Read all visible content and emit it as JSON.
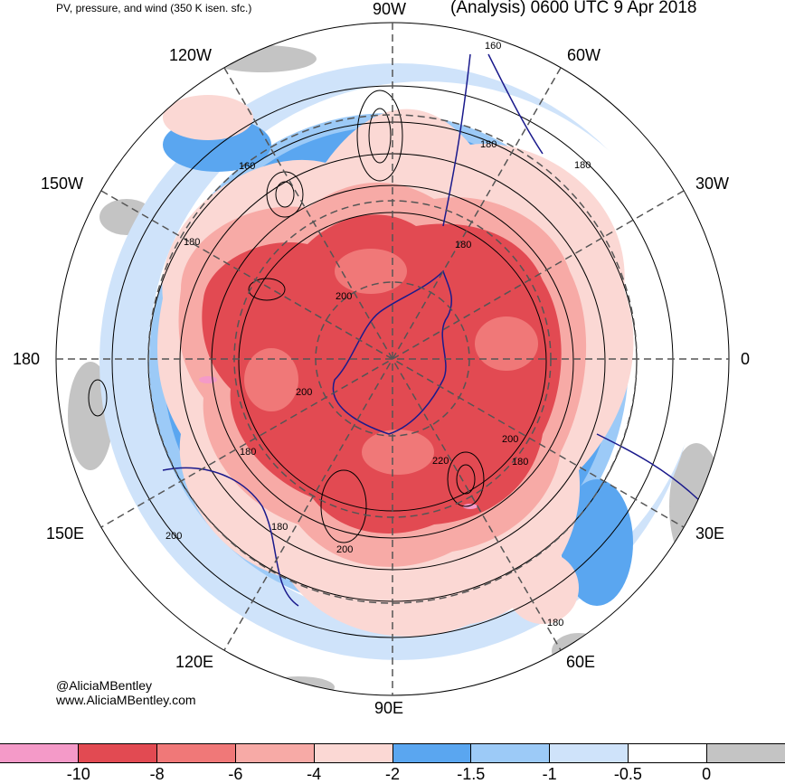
{
  "header": {
    "left_title": "PV, pressure, and wind (350 K isen. sfc.)",
    "right_title": "(Analysis) 0600 UTC 9 Apr 2018"
  },
  "longitude_labels": {
    "lon_90w": "90W",
    "lon_120w": "120W",
    "lon_60w": "60W",
    "lon_150w": "150W",
    "lon_30w": "30W",
    "lon_180": "180",
    "lon_0": "0",
    "lon_150e": "150E",
    "lon_30e": "30E",
    "lon_120e": "120E",
    "lon_60e": "60E",
    "lon_90e": "90E"
  },
  "contour_labels": [
    "160",
    "160",
    "180",
    "180",
    "180",
    "180",
    "200",
    "200",
    "180",
    "220",
    "200",
    "180",
    "180",
    "200",
    "200",
    "180",
    "180"
  ],
  "credit": {
    "handle": "@AliciaMBentley",
    "website": "www.AliciaMBentley.com"
  },
  "colorbar": {
    "colors": [
      "#f49ac8",
      "#e24a52",
      "#f07878",
      "#f7aaa6",
      "#fbd8d4",
      "#5aa6f0",
      "#9ccaf7",
      "#cfe3fa",
      "#ffffff",
      "#c4c4c4"
    ],
    "ticks": [
      "-10",
      "-8",
      "-6",
      "-4",
      "-2",
      "-1.5",
      "-1",
      "-0.5",
      "0"
    ]
  },
  "colors": {
    "coastline": "#1a1a8c",
    "contour": "#000000",
    "grid": "#555555"
  }
}
